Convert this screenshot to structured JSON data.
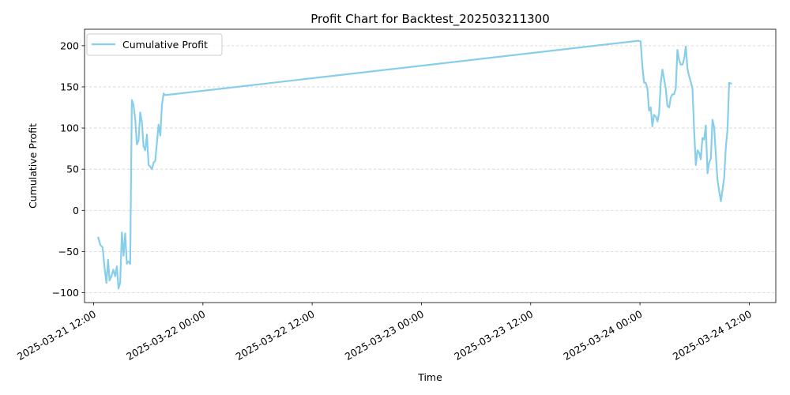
{
  "chart_data": {
    "type": "line",
    "title": "Profit Chart for Backtest_202503211300",
    "xlabel": "Time",
    "ylabel": "Cumulative Profit",
    "x_ticks": [
      "2025-03-21 12:00",
      "2025-03-22 00:00",
      "2025-03-22 12:00",
      "2025-03-23 00:00",
      "2025-03-23 12:00",
      "2025-03-24 00:00",
      "2025-03-24 12:00"
    ],
    "y_ticks": [
      -100,
      -50,
      0,
      50,
      100,
      150,
      200
    ],
    "xlim": [
      "2025-03-21 11:00",
      "2025-03-24 14:55"
    ],
    "ylim": [
      -112,
      220
    ],
    "grid": "horizontal dashed",
    "legend_position": "top-left",
    "line_color": "#87ceeb",
    "grid_color": "#d3d3d3",
    "series": [
      {
        "name": "Cumulative Profit",
        "points": [
          [
            "2025-03-21 12:30",
            -33
          ],
          [
            "2025-03-21 12:44",
            -42
          ],
          [
            "2025-03-21 12:59",
            -45
          ],
          [
            "2025-03-21 13:12",
            -70
          ],
          [
            "2025-03-21 13:24",
            -88
          ],
          [
            "2025-03-21 13:35",
            -60
          ],
          [
            "2025-03-21 13:45",
            -85
          ],
          [
            "2025-03-21 13:57",
            -80
          ],
          [
            "2025-03-21 14:10",
            -72
          ],
          [
            "2025-03-21 14:22",
            -80
          ],
          [
            "2025-03-21 14:33",
            -68
          ],
          [
            "2025-03-21 14:44",
            -95
          ],
          [
            "2025-03-21 14:55",
            -88
          ],
          [
            "2025-03-21 15:06",
            -27
          ],
          [
            "2025-03-21 15:17",
            -55
          ],
          [
            "2025-03-21 15:28",
            -28
          ],
          [
            "2025-03-21 15:39",
            -65
          ],
          [
            "2025-03-21 15:50",
            -62
          ],
          [
            "2025-03-21 16:01",
            -65
          ],
          [
            "2025-03-21 16:12",
            134
          ],
          [
            "2025-03-21 16:23",
            128
          ],
          [
            "2025-03-21 16:34",
            110
          ],
          [
            "2025-03-21 16:45",
            80
          ],
          [
            "2025-03-21 16:56",
            85
          ],
          [
            "2025-03-21 17:07",
            119
          ],
          [
            "2025-03-21 17:18",
            107
          ],
          [
            "2025-03-21 17:29",
            78
          ],
          [
            "2025-03-21 17:40",
            73
          ],
          [
            "2025-03-21 17:51",
            92
          ],
          [
            "2025-03-21 18:02",
            55
          ],
          [
            "2025-03-21 18:13",
            53
          ],
          [
            "2025-03-21 18:24",
            50
          ],
          [
            "2025-03-21 18:35",
            58
          ],
          [
            "2025-03-21 18:46",
            60
          ],
          [
            "2025-03-21 18:57",
            82
          ],
          [
            "2025-03-21 19:08",
            104
          ],
          [
            "2025-03-21 19:19",
            91
          ],
          [
            "2025-03-21 19:30",
            128
          ],
          [
            "2025-03-21 19:41",
            142
          ],
          [
            "2025-03-21 19:52",
            140
          ],
          [
            "2025-03-23 23:50",
            206
          ],
          [
            "2025-03-24 00:05",
            205
          ],
          [
            "2025-03-24 00:16",
            175
          ],
          [
            "2025-03-24 00:27",
            155
          ],
          [
            "2025-03-24 00:38",
            155
          ],
          [
            "2025-03-24 00:49",
            148
          ],
          [
            "2025-03-24 01:00",
            121
          ],
          [
            "2025-03-24 01:11",
            125
          ],
          [
            "2025-03-24 01:22",
            102
          ],
          [
            "2025-03-24 01:33",
            116
          ],
          [
            "2025-03-24 01:44",
            114
          ],
          [
            "2025-03-24 01:55",
            108
          ],
          [
            "2025-03-24 02:06",
            118
          ],
          [
            "2025-03-24 02:17",
            155
          ],
          [
            "2025-03-24 02:28",
            171
          ],
          [
            "2025-03-24 02:39",
            160
          ],
          [
            "2025-03-24 02:50",
            148
          ],
          [
            "2025-03-24 03:01",
            127
          ],
          [
            "2025-03-24 03:12",
            125
          ],
          [
            "2025-03-24 03:23",
            137
          ],
          [
            "2025-03-24 03:34",
            141
          ],
          [
            "2025-03-24 03:45",
            141
          ],
          [
            "2025-03-24 03:56",
            148
          ],
          [
            "2025-03-24 04:07",
            195
          ],
          [
            "2025-03-24 04:18",
            183
          ],
          [
            "2025-03-24 04:29",
            177
          ],
          [
            "2025-03-24 04:40",
            177
          ],
          [
            "2025-03-24 04:51",
            184
          ],
          [
            "2025-03-24 05:02",
            199
          ],
          [
            "2025-03-24 05:13",
            172
          ],
          [
            "2025-03-24 05:24",
            163
          ],
          [
            "2025-03-24 05:35",
            156
          ],
          [
            "2025-03-24 05:46",
            148
          ],
          [
            "2025-03-24 05:57",
            96
          ],
          [
            "2025-03-24 06:08",
            55
          ],
          [
            "2025-03-24 06:19",
            73
          ],
          [
            "2025-03-24 06:30",
            70
          ],
          [
            "2025-03-24 06:41",
            62
          ],
          [
            "2025-03-24 06:52",
            88
          ],
          [
            "2025-03-24 07:03",
            86
          ],
          [
            "2025-03-24 07:14",
            103
          ],
          [
            "2025-03-24 07:25",
            45
          ],
          [
            "2025-03-24 07:36",
            58
          ],
          [
            "2025-03-24 07:47",
            63
          ],
          [
            "2025-03-24 07:58",
            110
          ],
          [
            "2025-03-24 08:09",
            101
          ],
          [
            "2025-03-24 08:20",
            68
          ],
          [
            "2025-03-24 08:31",
            37
          ],
          [
            "2025-03-24 08:42",
            24
          ],
          [
            "2025-03-24 08:53",
            11
          ],
          [
            "2025-03-24 09:04",
            25
          ],
          [
            "2025-03-24 09:15",
            40
          ],
          [
            "2025-03-24 09:26",
            77
          ],
          [
            "2025-03-24 09:37",
            98
          ],
          [
            "2025-03-24 09:48",
            155
          ],
          [
            "2025-03-24 10:00",
            154
          ]
        ]
      }
    ]
  }
}
